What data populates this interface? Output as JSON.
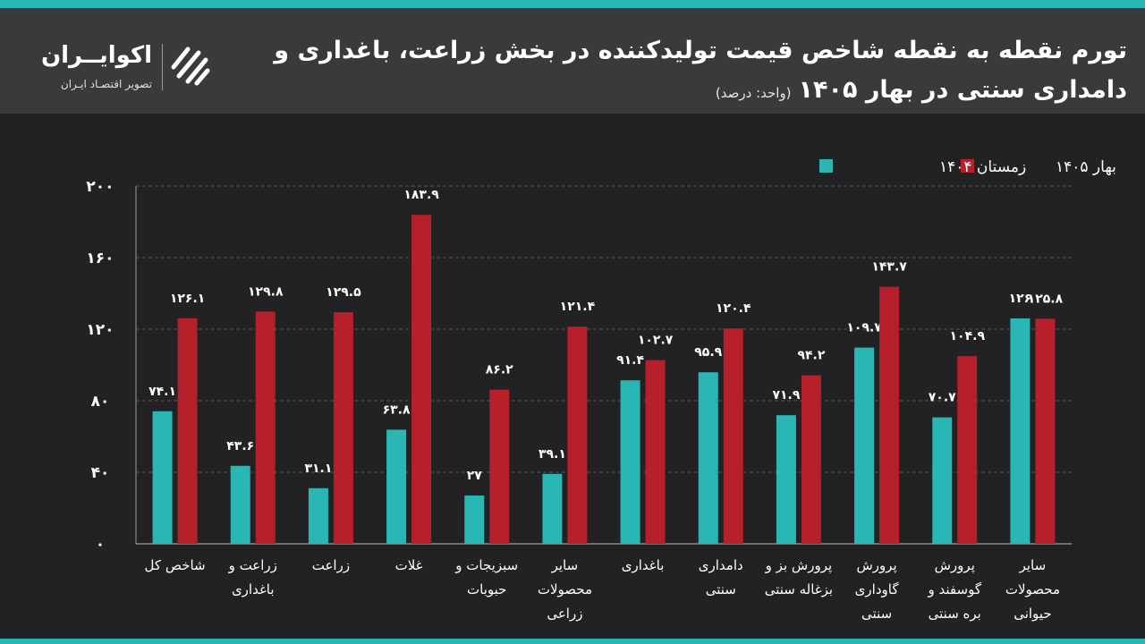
{
  "header": {
    "title_line1": "تورم نقطه به نقطه شاخص قیمت تولیدکننده در بخش زراعت، باغداری و",
    "title_line2": "دامداری سنتی در بهار ۱۴۰۵",
    "unit": "(واحد: درصد)"
  },
  "brand": {
    "name": "اکوایــران",
    "tagline": "تصویر اقتصـاد ایـران"
  },
  "colors": {
    "winter": "#2ab6b3",
    "spring": "#b5202b",
    "accent": "#2ab6b3"
  },
  "chart_data": {
    "type": "bar",
    "ylim": [
      0,
      200
    ],
    "yticks": [
      0,
      40,
      80,
      120,
      160,
      200
    ],
    "ytick_labels": [
      "0",
      "40",
      "80",
      "120",
      "160",
      "200"
    ],
    "grid": true,
    "legend_position": "top-right",
    "categories": [
      "شاخص کل",
      "زراعت و باغداری",
      "زراعت",
      "غلات",
      "سبزیجات و حبوبات",
      "سایر محصولات زراعی",
      "باغداری",
      "دامداری سنتی",
      "پرورش بز و بزغاله سنتی",
      "پرورش گاوداری سنتی",
      "پرورش گوسفند و بره سنتی",
      "سایر محصولات حیوانی"
    ],
    "category_lines": [
      [
        "شاخص کل"
      ],
      [
        "زراعت و",
        "باغداری"
      ],
      [
        "زراعت"
      ],
      [
        "غلات"
      ],
      [
        "سبزیجات و",
        "حبوبات"
      ],
      [
        "سایر",
        "محصولات",
        "زراعی"
      ],
      [
        "باغداری"
      ],
      [
        "دامداری",
        "سنتی"
      ],
      [
        "پرورش بز و",
        "بزغاله سنتی"
      ],
      [
        "پرورش",
        "گاوداری",
        "سنتی"
      ],
      [
        "پرورش",
        "گوسفند و",
        "بره سنتی"
      ],
      [
        "سایر",
        "محصولات",
        "حیوانی"
      ]
    ],
    "series": [
      {
        "name": "زمستان ۱۴۰۴",
        "color": "#2ab6b3",
        "values": [
          74.1,
          43.6,
          31.1,
          63.8,
          27,
          39.1,
          91.4,
          95.9,
          71.9,
          109.7,
          70.7,
          126
        ],
        "labels": [
          "۷۴.۱",
          "۴۳.۶",
          "۳۱.۱",
          "۶۳.۸",
          "۲۷",
          "۳۹.۱",
          "۹۱.۴",
          "۹۵.۹",
          "۷۱.۹",
          "۱۰۹.۷",
          "۷۰.۷",
          "۱۲۶"
        ]
      },
      {
        "name": "بهار ۱۴۰۵",
        "color": "#b5202b",
        "values": [
          126.1,
          129.8,
          129.5,
          183.9,
          86.2,
          121.4,
          102.7,
          120.4,
          94.2,
          143.7,
          104.9,
          125.8
        ],
        "labels": [
          "۱۲۶.۱",
          "۱۲۹.۸",
          "۱۲۹.۵",
          "۱۸۳.۹",
          "۸۶.۲",
          "۱۲۱.۴",
          "۱۰۲.۷",
          "۱۲۰.۴",
          "۹۴.۲",
          "۱۴۳.۷",
          "۱۰۴.۹",
          "۱۲۵.۸"
        ]
      }
    ]
  }
}
